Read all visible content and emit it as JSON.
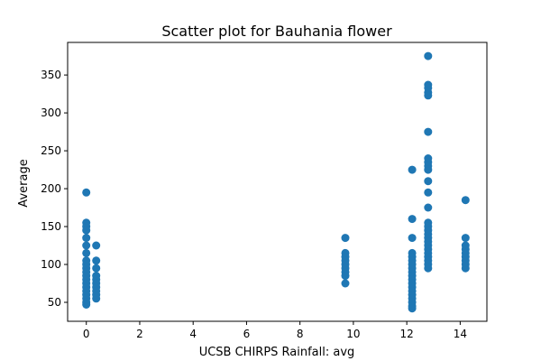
{
  "chart_data": {
    "type": "scatter",
    "title": "Scatter plot for Bauhania flower",
    "xlabel": "UCSB CHIRPS Rainfall: avg",
    "ylabel": "Average",
    "xlim": [
      -0.7,
      15.0
    ],
    "ylim": [
      25,
      393
    ],
    "xticks": [
      0,
      2,
      4,
      6,
      8,
      10,
      12,
      14
    ],
    "yticks": [
      50,
      100,
      150,
      200,
      250,
      300,
      350
    ],
    "grid": false,
    "color": "#1f77b4",
    "points": [
      [
        0,
        195
      ],
      [
        0,
        155
      ],
      [
        0,
        150
      ],
      [
        0,
        145
      ],
      [
        0,
        135
      ],
      [
        0,
        125
      ],
      [
        0,
        115
      ],
      [
        0,
        105
      ],
      [
        0,
        100
      ],
      [
        0,
        95
      ],
      [
        0,
        90
      ],
      [
        0,
        85
      ],
      [
        0,
        80
      ],
      [
        0,
        75
      ],
      [
        0,
        70
      ],
      [
        0,
        65
      ],
      [
        0,
        60
      ],
      [
        0,
        55
      ],
      [
        0,
        50
      ],
      [
        0,
        47
      ],
      [
        0.37,
        125
      ],
      [
        0.37,
        105
      ],
      [
        0.37,
        95
      ],
      [
        0.37,
        85
      ],
      [
        0.37,
        80
      ],
      [
        0.37,
        75
      ],
      [
        0.37,
        70
      ],
      [
        0.37,
        65
      ],
      [
        0.37,
        60
      ],
      [
        0.37,
        55
      ],
      [
        9.7,
        135
      ],
      [
        9.7,
        115
      ],
      [
        9.7,
        110
      ],
      [
        9.7,
        105
      ],
      [
        9.7,
        100
      ],
      [
        9.7,
        95
      ],
      [
        9.7,
        90
      ],
      [
        9.7,
        85
      ],
      [
        9.7,
        75
      ],
      [
        12.2,
        225
      ],
      [
        12.2,
        160
      ],
      [
        12.2,
        135
      ],
      [
        12.2,
        115
      ],
      [
        12.2,
        110
      ],
      [
        12.2,
        105
      ],
      [
        12.2,
        100
      ],
      [
        12.2,
        95
      ],
      [
        12.2,
        90
      ],
      [
        12.2,
        85
      ],
      [
        12.2,
        80
      ],
      [
        12.2,
        75
      ],
      [
        12.2,
        70
      ],
      [
        12.2,
        65
      ],
      [
        12.2,
        60
      ],
      [
        12.2,
        55
      ],
      [
        12.2,
        50
      ],
      [
        12.2,
        45
      ],
      [
        12.2,
        42
      ],
      [
        12.8,
        375
      ],
      [
        12.8,
        337
      ],
      [
        12.8,
        333
      ],
      [
        12.8,
        327
      ],
      [
        12.8,
        323
      ],
      [
        12.8,
        275
      ],
      [
        12.8,
        240
      ],
      [
        12.8,
        235
      ],
      [
        12.8,
        230
      ],
      [
        12.8,
        225
      ],
      [
        12.8,
        210
      ],
      [
        12.8,
        195
      ],
      [
        12.8,
        175
      ],
      [
        12.8,
        155
      ],
      [
        12.8,
        150
      ],
      [
        12.8,
        145
      ],
      [
        12.8,
        140
      ],
      [
        12.8,
        135
      ],
      [
        12.8,
        130
      ],
      [
        12.8,
        125
      ],
      [
        12.8,
        120
      ],
      [
        12.8,
        115
      ],
      [
        12.8,
        110
      ],
      [
        12.8,
        105
      ],
      [
        12.8,
        100
      ],
      [
        12.8,
        95
      ],
      [
        14.2,
        185
      ],
      [
        14.2,
        135
      ],
      [
        14.2,
        125
      ],
      [
        14.2,
        120
      ],
      [
        14.2,
        115
      ],
      [
        14.2,
        110
      ],
      [
        14.2,
        105
      ],
      [
        14.2,
        100
      ],
      [
        14.2,
        95
      ]
    ]
  }
}
